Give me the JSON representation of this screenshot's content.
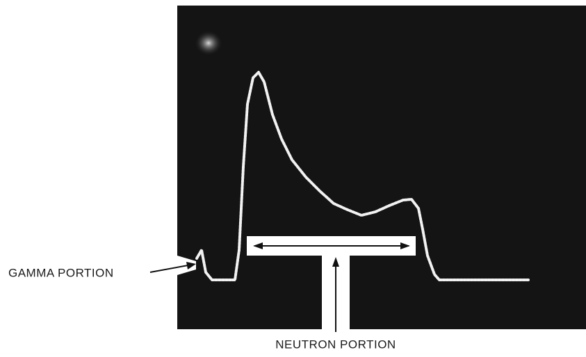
{
  "annotations": {
    "gamma": "GAMMA PORTION",
    "neutron": "NEUTRON PORTION"
  }
}
